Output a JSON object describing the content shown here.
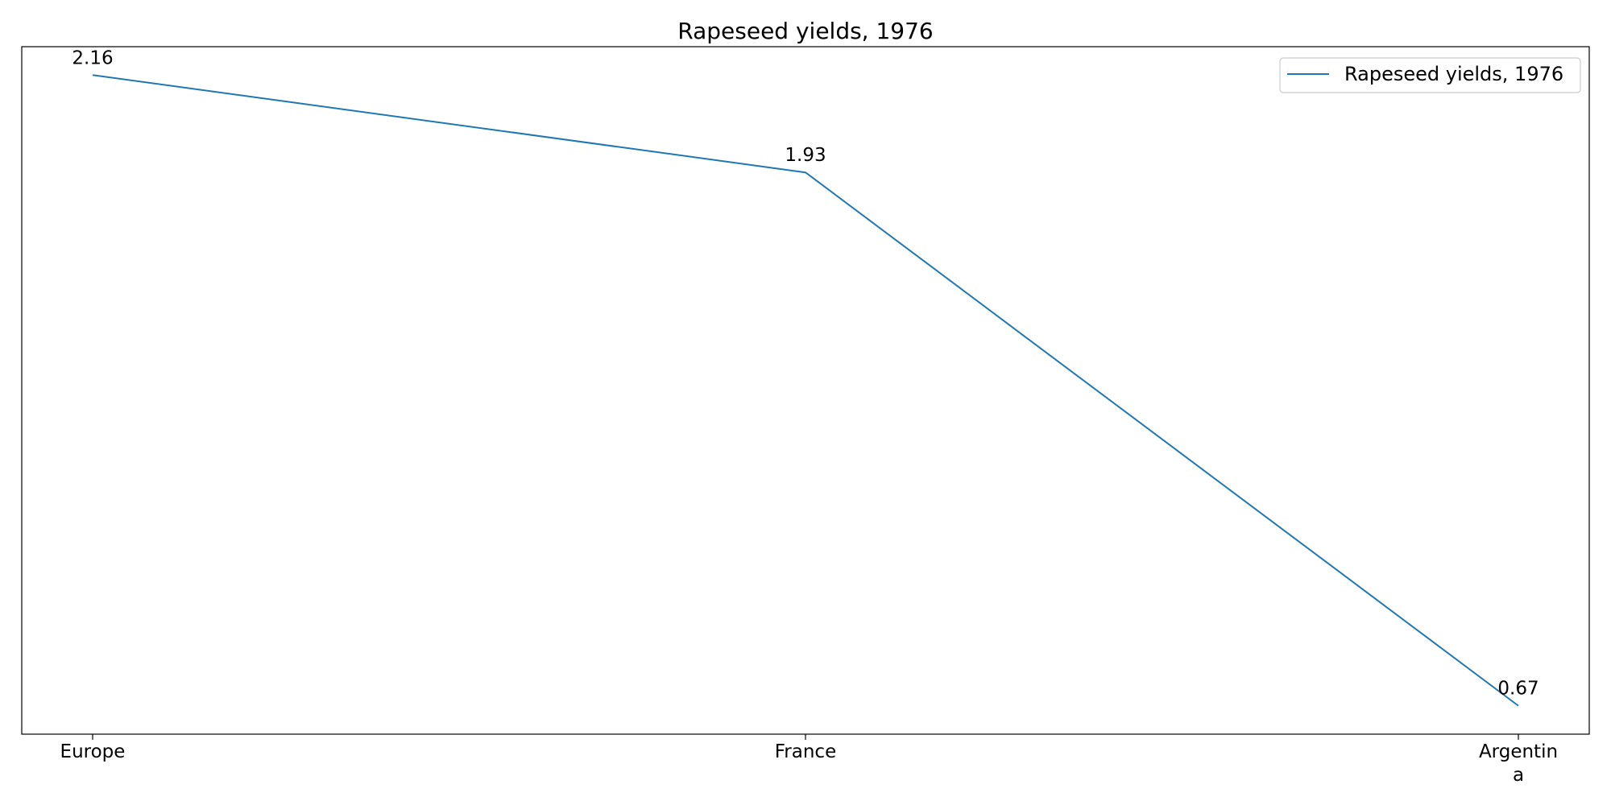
{
  "chart_data": {
    "type": "line",
    "title": "Rapeseed yields, 1976",
    "categories": [
      "Europe",
      "France",
      "Argentina"
    ],
    "tick_labels": [
      [
        "Europe"
      ],
      [
        "France"
      ],
      [
        "Argentin",
        "a"
      ]
    ],
    "series": [
      {
        "name": "Rapeseed yields, 1976",
        "values": [
          2.16,
          1.93,
          0.67
        ],
        "data_labels": [
          "2.16",
          "1.93",
          "0.67"
        ],
        "color": "#1f77b4"
      }
    ],
    "xlabel": "",
    "ylabel": "",
    "grid": false,
    "legend": "top-right",
    "y_ticks_visible": false
  }
}
